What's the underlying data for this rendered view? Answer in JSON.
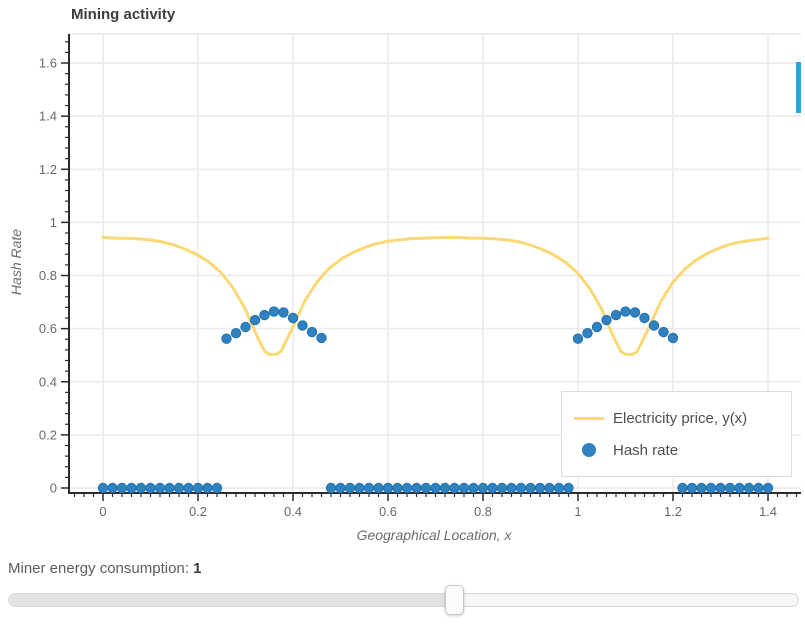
{
  "chart_data": {
    "type": "mixed",
    "title": "Mining activity",
    "xlabel": "Geographical Location, x",
    "ylabel": "Hash Rate",
    "xlim": [
      -0.07,
      1.47
    ],
    "ylim": [
      -0.03,
      1.71
    ],
    "grid": true,
    "legend_position": "lower right",
    "x_ticks": [
      0,
      0.2,
      0.4,
      0.6,
      0.8,
      1,
      1.2,
      1.4
    ],
    "x_tick_labels": [
      "0",
      "0.2",
      "0.4",
      "0.6",
      "0.8",
      "1",
      "1.2",
      "1.4"
    ],
    "y_ticks": [
      0,
      0.2,
      0.4,
      0.6,
      0.8,
      1,
      1.2,
      1.4,
      1.6
    ],
    "y_tick_labels": [
      "0",
      "0.2",
      "0.4",
      "0.6",
      "0.8",
      "1",
      "1.2",
      "1.4",
      "1.6"
    ],
    "x_minor_step": 0.02,
    "y_minor_step": 0.04,
    "series": [
      {
        "name": "Electricity price, y(x)",
        "type": "line",
        "color": "#fbd873",
        "width": 3,
        "x": [
          0,
          0.025,
          0.05,
          0.075,
          0.1,
          0.125,
          0.15,
          0.175,
          0.2,
          0.225,
          0.25,
          0.275,
          0.3,
          0.325,
          0.34,
          0.35,
          0.365,
          0.375,
          0.4,
          0.425,
          0.45,
          0.475,
          0.5,
          0.525,
          0.55,
          0.575,
          0.6,
          0.625,
          0.65,
          0.675,
          0.7,
          0.725,
          0.75,
          0.775,
          0.8,
          0.825,
          0.85,
          0.875,
          0.9,
          0.925,
          0.95,
          0.975,
          1.0,
          1.025,
          1.05,
          1.075,
          1.09,
          1.1,
          1.115,
          1.125,
          1.15,
          1.175,
          1.2,
          1.225,
          1.25,
          1.275,
          1.3,
          1.325,
          1.35,
          1.375,
          1.4
        ],
        "y": [
          0.943,
          0.941,
          0.94,
          0.938,
          0.934,
          0.927,
          0.915,
          0.898,
          0.877,
          0.848,
          0.808,
          0.75,
          0.672,
          0.568,
          0.515,
          0.503,
          0.503,
          0.515,
          0.607,
          0.705,
          0.775,
          0.825,
          0.86,
          0.886,
          0.905,
          0.92,
          0.929,
          0.935,
          0.939,
          0.941,
          0.942,
          0.943,
          0.943,
          0.941,
          0.94,
          0.938,
          0.934,
          0.927,
          0.915,
          0.898,
          0.877,
          0.848,
          0.808,
          0.75,
          0.672,
          0.568,
          0.515,
          0.503,
          0.503,
          0.515,
          0.607,
          0.705,
          0.775,
          0.825,
          0.86,
          0.886,
          0.905,
          0.92,
          0.929,
          0.935,
          0.94
        ]
      },
      {
        "name": "Hash rate",
        "type": "scatter",
        "color": "#2f81bf",
        "edge_color": "#2371ad",
        "radius": 4.7,
        "x": [
          0,
          0.02,
          0.04,
          0.06,
          0.08,
          0.1,
          0.12,
          0.14,
          0.16,
          0.18,
          0.2,
          0.22,
          0.24,
          0.26,
          0.28,
          0.3,
          0.32,
          0.34,
          0.36,
          0.38,
          0.4,
          0.42,
          0.44,
          0.46,
          0.48,
          0.5,
          0.52,
          0.54,
          0.56,
          0.58,
          0.6,
          0.62,
          0.64,
          0.66,
          0.68,
          0.7,
          0.72,
          0.74,
          0.76,
          0.78,
          0.8,
          0.82,
          0.84,
          0.86,
          0.88,
          0.9,
          0.92,
          0.94,
          0.96,
          0.98,
          1.0,
          1.02,
          1.04,
          1.06,
          1.08,
          1.1,
          1.12,
          1.14,
          1.16,
          1.18,
          1.2,
          1.22,
          1.24,
          1.26,
          1.28,
          1.3,
          1.32,
          1.34,
          1.36,
          1.38,
          1.4
        ],
        "y": [
          0,
          0,
          0,
          0,
          0,
          0,
          0,
          0,
          0,
          0,
          0,
          0,
          0,
          0.562,
          0.583,
          0.606,
          0.632,
          0.651,
          0.664,
          0.661,
          0.64,
          0.612,
          0.587,
          0.565,
          0,
          0,
          0,
          0,
          0,
          0,
          0,
          0,
          0,
          0,
          0,
          0,
          0,
          0,
          0,
          0,
          0,
          0,
          0,
          0,
          0,
          0,
          0,
          0,
          0,
          0,
          0.562,
          0.583,
          0.606,
          0.632,
          0.651,
          0.664,
          0.661,
          0.64,
          0.612,
          0.587,
          0.565,
          0,
          0,
          0,
          0,
          0,
          0,
          0,
          0,
          0,
          0
        ]
      }
    ]
  },
  "slider": {
    "label": "Miner energy consumption:",
    "value": "1"
  },
  "scroll_indicator": {
    "color": "#2ba3dc"
  }
}
